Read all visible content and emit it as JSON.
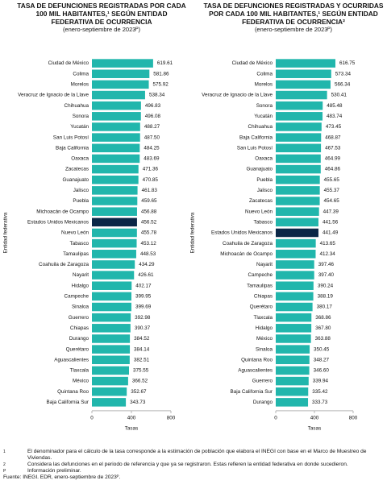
{
  "chart_data": [
    {
      "type": "barh",
      "title": "TASA DE DEFUNCIONES REGISTRADAS POR CADA 100 MIL HABITANTES,¹ SEGÚN ENTIDAD FEDERATIVA DE OCURRENCIA",
      "subtitle": "(enero-septiembre de 2023ᴾ)",
      "x_label": "Tasas",
      "y_label": "Entidad federativa",
      "categories": [
        "Ciudad de México",
        "Colima",
        "Morelos",
        "Veracruz de Ignacio de la Llave",
        "Chihuahua",
        "Sonora",
        "Yucatán",
        "San Luis Potosí",
        "Baja California",
        "Oaxaca",
        "Zacatecas",
        "Guanajuato",
        "Jalisco",
        "Puebla",
        "Michoacán de Ocampo",
        "Estados Unidos Mexicanos",
        "Nuevo León",
        "Tabasco",
        "Tamaulipas",
        "Coahuila de Zaragoza",
        "Nayarit",
        "Hidalgo",
        "Campeche",
        "Sinaloa",
        "Guerrero",
        "Chiapas",
        "Durango",
        "Querétaro",
        "Aguascalientes",
        "Tlaxcala",
        "México",
        "Quintana Roo",
        "Baja California Sur"
      ],
      "values": [
        619.61,
        581.86,
        575.92,
        538.34,
        496.83,
        496.08,
        488.27,
        487.5,
        484.25,
        483.69,
        471.36,
        470.85,
        461.83,
        459.65,
        456.88,
        456.52,
        455.78,
        453.12,
        448.53,
        434.29,
        426.61,
        402.17,
        399.95,
        399.69,
        392.98,
        390.37,
        384.52,
        384.14,
        382.51,
        375.55,
        366.52,
        352.67,
        343.73
      ],
      "value_labels": [
        "619.61",
        "581.86",
        "575.92",
        "538.34",
        "496.83",
        "496.08",
        "488.27",
        "487.50",
        "484.25",
        "483.69",
        "471.36",
        "470.85",
        "461.83",
        "459.65",
        "456.88",
        "456.52",
        "455.78",
        "453.12",
        "448.53",
        "434.29",
        "426.61",
        "402.17",
        "399.95",
        "399.69",
        "392.98",
        "390.37",
        "384.52",
        "384.14",
        "382.51",
        "375.55",
        "366.52",
        "352.67",
        "343.73"
      ],
      "colors": [
        "#21b6ac",
        "#21b6ac",
        "#21b6ac",
        "#21b6ac",
        "#21b6ac",
        "#21b6ac",
        "#21b6ac",
        "#21b6ac",
        "#21b6ac",
        "#21b6ac",
        "#21b6ac",
        "#21b6ac",
        "#21b6ac",
        "#21b6ac",
        "#21b6ac",
        "#0b2747",
        "#21b6ac",
        "#21b6ac",
        "#21b6ac",
        "#21b6ac",
        "#21b6ac",
        "#21b6ac",
        "#21b6ac",
        "#21b6ac",
        "#21b6ac",
        "#21b6ac",
        "#21b6ac",
        "#21b6ac",
        "#21b6ac",
        "#21b6ac",
        "#21b6ac",
        "#21b6ac",
        "#21b6ac"
      ],
      "xlim": [
        0,
        800
      ],
      "xticks": [
        0,
        400,
        800
      ]
    },
    {
      "type": "barh",
      "title": "TASA DE DEFUNCIONES REGISTRADAS Y OCURRIDAS POR CADA 100 MIL HABITANTES,¹ SEGÚN ENTIDAD FEDERATIVA DE OCURRENCIA²",
      "subtitle": "(enero-septiembre de 2023ᴾ)",
      "x_label": "Tasas",
      "y_label": "Entidad federativa",
      "categories": [
        "Ciudad de México",
        "Colima",
        "Morelos",
        "Veracruz de Ignacio de la Llave",
        "Sonora",
        "Yucatán",
        "Chihuahua",
        "Baja California",
        "San Luis Potosí",
        "Oaxaca",
        "Guanajuato",
        "Puebla",
        "Jalisco",
        "Zacatecas",
        "Nuevo León",
        "Tabasco",
        "Estados Unidos Mexicanos",
        "Coahuila de Zaragoza",
        "Michoacán de Ocampo",
        "Nayarit",
        "Campeche",
        "Tamaulipas",
        "Chiapas",
        "Querétaro",
        "Tlaxcala",
        "Hidalgo",
        "México",
        "Sinaloa",
        "Quintana Roo",
        "Aguascalientes",
        "Guerrero",
        "Baja California Sur",
        "Durango"
      ],
      "values": [
        616.75,
        573.34,
        566.34,
        530.41,
        485.48,
        483.74,
        473.45,
        468.87,
        467.53,
        464.99,
        464.86,
        455.65,
        455.37,
        454.65,
        447.39,
        441.56,
        441.49,
        413.65,
        412.34,
        397.46,
        397.4,
        390.24,
        388.19,
        380.17,
        368.86,
        367.8,
        363.88,
        350.45,
        348.27,
        346.6,
        339.94,
        335.42,
        333.73
      ],
      "value_labels": [
        "616.75",
        "573.34",
        "566.34",
        "530.41",
        "485.48",
        "483.74",
        "473.45",
        "468.87",
        "467.53",
        "464.99",
        "464.86",
        "455.65",
        "455.37",
        "454.65",
        "447.39",
        "441.56",
        "441.49",
        "413.65",
        "412.34",
        "397.46",
        "397.40",
        "390.24",
        "388.19",
        "380.17",
        "368.86",
        "367.80",
        "363.88",
        "350.45",
        "348.27",
        "346.60",
        "339.94",
        "335.42",
        "333.73"
      ],
      "colors": [
        "#21b6ac",
        "#21b6ac",
        "#21b6ac",
        "#21b6ac",
        "#21b6ac",
        "#21b6ac",
        "#21b6ac",
        "#21b6ac",
        "#21b6ac",
        "#21b6ac",
        "#21b6ac",
        "#21b6ac",
        "#21b6ac",
        "#21b6ac",
        "#21b6ac",
        "#21b6ac",
        "#0b2747",
        "#21b6ac",
        "#21b6ac",
        "#21b6ac",
        "#21b6ac",
        "#21b6ac",
        "#21b6ac",
        "#21b6ac",
        "#21b6ac",
        "#21b6ac",
        "#21b6ac",
        "#21b6ac",
        "#21b6ac",
        "#21b6ac",
        "#21b6ac",
        "#21b6ac",
        "#21b6ac"
      ],
      "xlim": [
        0,
        800
      ],
      "xticks": [
        0,
        400,
        800
      ]
    }
  ],
  "footnotes": [
    {
      "mark": "1",
      "text": "El denominador para el cálculo de la tasa corresponde a la estimación de población que elabora el INEGI con base en el Marco de Muestreo de Viviendas."
    },
    {
      "mark": "2",
      "text": "Considera las defunciones en el periodo de referencia y que ya se registraron. Estas refieren la entidad federativa en donde sucedieron."
    },
    {
      "mark": "P",
      "text": "Información preliminar."
    }
  ],
  "source": "Fuente: INEGI. EDR, enero-septiembre de 2023ᴾ."
}
